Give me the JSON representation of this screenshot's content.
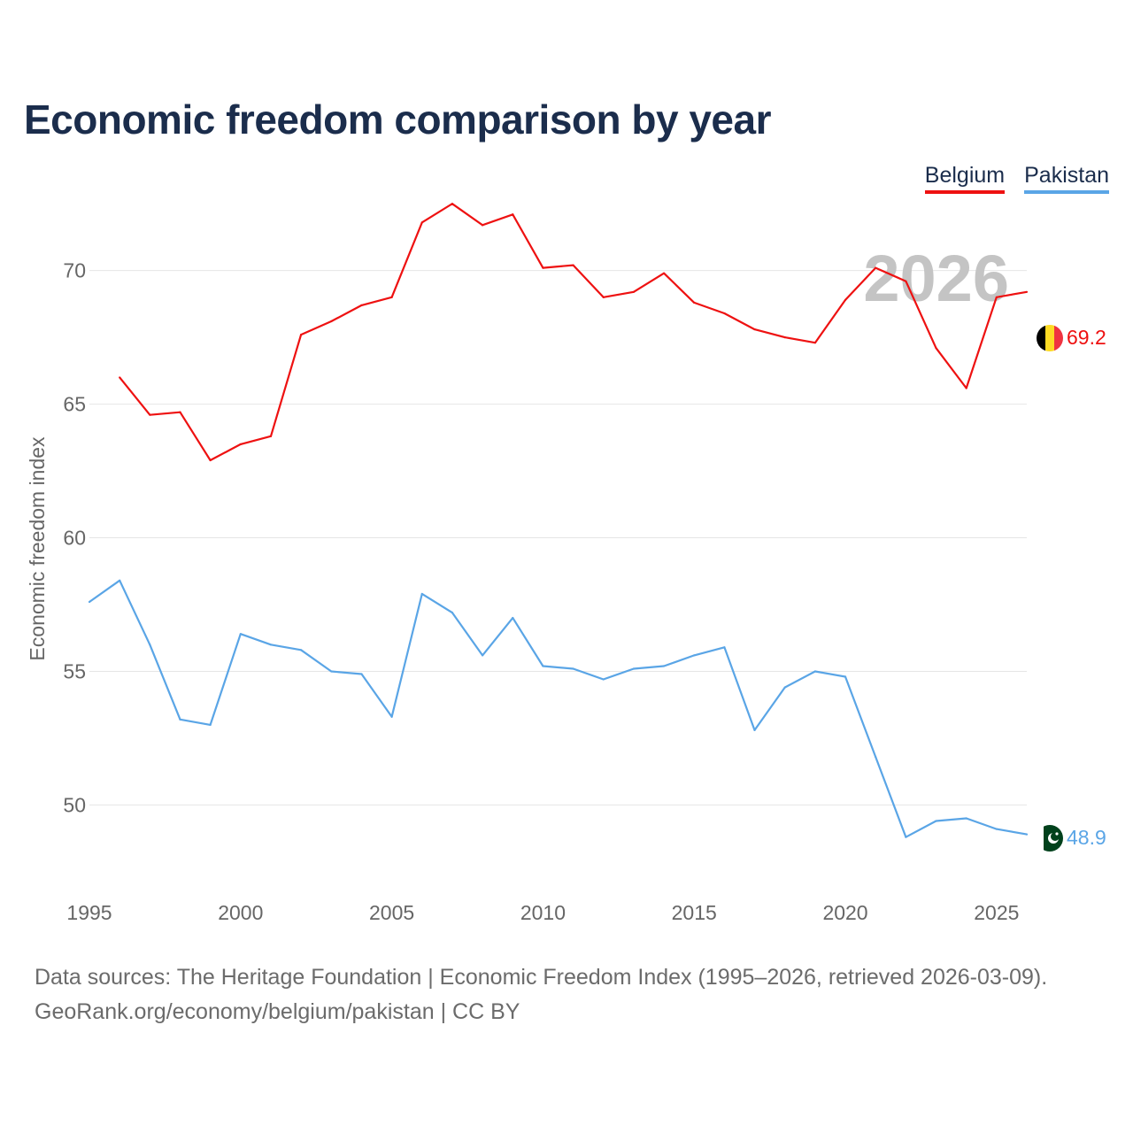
{
  "title": "Economic freedom comparison by year",
  "legend": [
    {
      "label": "Belgium",
      "color": "#ee1111"
    },
    {
      "label": "Pakistan",
      "color": "#5aa5e6"
    }
  ],
  "year_watermark": "2026",
  "chart_data": {
    "type": "line",
    "title": "Economic freedom comparison by year",
    "xlabel": "",
    "ylabel": "Economic freedom index",
    "xlim": [
      1995,
      2026
    ],
    "ylim": [
      47,
      73.5
    ],
    "x_ticks": [
      1995,
      2000,
      2005,
      2010,
      2015,
      2020,
      2025
    ],
    "y_ticks": [
      50,
      55,
      60,
      65,
      70
    ],
    "grid": true,
    "series": [
      {
        "name": "Belgium",
        "color": "#ee1111",
        "end_label": "69.2",
        "x": [
          1996,
          1997,
          1998,
          1999,
          2000,
          2001,
          2002,
          2003,
          2004,
          2005,
          2006,
          2007,
          2008,
          2009,
          2010,
          2011,
          2012,
          2013,
          2014,
          2015,
          2016,
          2017,
          2018,
          2019,
          2020,
          2021,
          2022,
          2023,
          2024,
          2025,
          2026
        ],
        "values": [
          66.0,
          64.6,
          64.7,
          62.9,
          63.5,
          63.8,
          67.6,
          68.1,
          68.7,
          69.0,
          71.8,
          72.5,
          71.7,
          72.1,
          70.1,
          70.2,
          69.0,
          69.2,
          69.9,
          68.8,
          68.4,
          67.8,
          67.5,
          67.3,
          68.9,
          70.1,
          69.6,
          67.1,
          65.6,
          69.0,
          69.2
        ]
      },
      {
        "name": "Pakistan",
        "color": "#5aa5e6",
        "end_label": "48.9",
        "x": [
          1995,
          1996,
          1997,
          1998,
          1999,
          2000,
          2001,
          2002,
          2003,
          2004,
          2005,
          2006,
          2007,
          2008,
          2009,
          2010,
          2011,
          2012,
          2013,
          2014,
          2015,
          2016,
          2017,
          2018,
          2019,
          2020,
          2021,
          2022,
          2023,
          2024,
          2025,
          2026
        ],
        "values": [
          57.6,
          58.4,
          56.0,
          53.2,
          53.0,
          56.4,
          56.0,
          55.8,
          55.0,
          54.9,
          53.3,
          57.9,
          57.2,
          55.6,
          57.0,
          55.2,
          55.1,
          54.7,
          55.1,
          55.2,
          55.6,
          55.9,
          52.8,
          54.4,
          55.0,
          54.8,
          51.8,
          48.8,
          49.4,
          49.5,
          49.1,
          48.9
        ]
      }
    ]
  },
  "footer": {
    "line1": "Data sources: The Heritage Foundation | Economic Freedom Index (1995–2026, retrieved 2026-03-09).",
    "link": "GeoRank.org/economy/belgium/pakistan",
    "license": " | CC BY"
  }
}
